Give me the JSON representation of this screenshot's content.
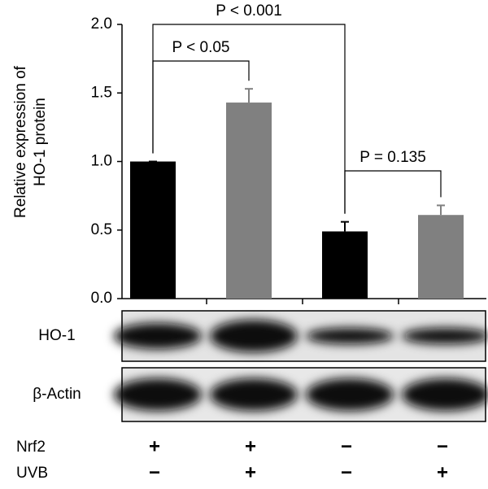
{
  "chart_data": {
    "type": "bar",
    "ylabel": [
      "Relative expression of",
      "HO-1 protein"
    ],
    "categories": [
      null,
      null,
      null,
      null
    ],
    "values": [
      1.0,
      1.43,
      0.49,
      0.61
    ],
    "errors": [
      0,
      0.1,
      0.07,
      0.07
    ],
    "colors": [
      "#000000",
      "#808080",
      "#000000",
      "#808080"
    ],
    "ylim": [
      0,
      2
    ],
    "yticks": [
      {
        "value": 0,
        "label": "0.0"
      },
      0.5,
      {
        "value": 1,
        "label": "1.0"
      },
      1.5,
      {
        "value": 2,
        "label": "2.0"
      }
    ],
    "annotations": [
      {
        "text": "P < 0.001",
        "from": 0,
        "to": 2
      },
      {
        "text": "P < 0.05",
        "from": 0,
        "to": 1
      },
      {
        "text": "P = 0.135",
        "from": 2,
        "to": 3
      }
    ],
    "blots": [
      "HO-1",
      "β-Actin"
    ],
    "conditions": [
      {
        "name": "Nrf2",
        "signs": [
          "+",
          "+",
          "−",
          "−"
        ]
      },
      {
        "name": "UVB",
        "signs": [
          "−",
          "+",
          "−",
          "+"
        ]
      }
    ]
  }
}
